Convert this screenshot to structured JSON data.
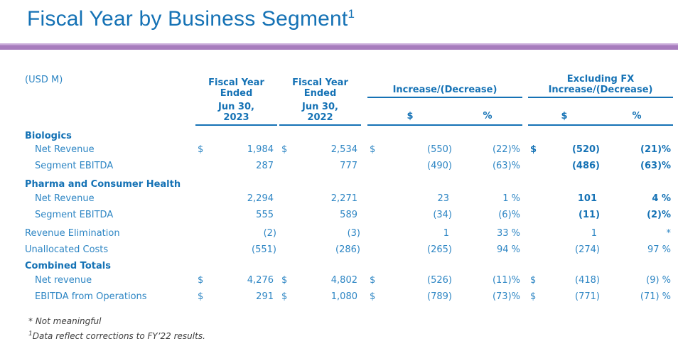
{
  "title": {
    "text": "Fiscal Year by Business Segment",
    "footnote_ref": "1"
  },
  "colors": {
    "title_blue": "#1572B5",
    "body_blue": "#2E86C4",
    "bar_purple": "#A77CBD",
    "bar_purple_light": "#C9ABD9",
    "footnote_gray": "#3E3E3E"
  },
  "table": {
    "unit_label": "(USD M)",
    "columns": {
      "fy2023": {
        "title_line1": "Fiscal Year",
        "title_line2": "Ended",
        "date_line1": "Jun 30,",
        "date_line2": "2023"
      },
      "fy2022": {
        "title_line1": "Fiscal Year",
        "title_line2": "Ended",
        "date_line1": "Jun 30,",
        "date_line2": "2022"
      },
      "increase": {
        "title": "Increase/(Decrease)",
        "sub_dollar": "$",
        "sub_percent": "%"
      },
      "excluding_fx": {
        "title_line1": "Excluding FX",
        "title_line2": "Increase/(Decrease)",
        "sub_dollar": "$",
        "sub_percent": "%"
      }
    },
    "rows": [
      {
        "kind": "section",
        "label": "Biologics",
        "spaced": true
      },
      {
        "kind": "data",
        "label": "Net Revenue",
        "indent": true,
        "fy2023_sign": "$",
        "fy2023": "1,984",
        "fy2022_sign": "$",
        "fy2022": "2,534",
        "inc_usd_sign": "$",
        "inc_usd": "(550)",
        "inc_pct": "(22)%",
        "fx_usd_sign": "$",
        "fx_usd": "(520)",
        "fx_pct": "(21)%",
        "fx_bold": true
      },
      {
        "kind": "data",
        "label": "Segment EBITDA",
        "indent": true,
        "fy2023": "287",
        "fy2022": "777",
        "inc_usd": "(490)",
        "inc_pct": "(63)%",
        "fx_usd": "(486)",
        "fx_pct": "(63)%",
        "fx_bold": true
      },
      {
        "kind": "section",
        "label": "Pharma and Consumer Health",
        "spaced": true
      },
      {
        "kind": "data",
        "label": "Net Revenue",
        "indent": true,
        "fy2023": "2,294",
        "fy2022": "2,271",
        "inc_usd": "23",
        "inc_pct": "1 %",
        "fx_usd": "101",
        "fx_pct": "4 %",
        "fx_bold": true
      },
      {
        "kind": "data",
        "label": "Segment EBITDA",
        "indent": true,
        "fy2023": "555",
        "fy2022": "589",
        "inc_usd": "(34)",
        "inc_pct": "(6)%",
        "fx_usd": "(11)",
        "fx_pct": "(2)%",
        "fx_bold": true
      },
      {
        "kind": "data",
        "label": "Revenue Elimination",
        "indent": false,
        "spaced": true,
        "fy2023": "(2)",
        "fy2022": "(3)",
        "inc_usd": "1",
        "inc_pct": "33 %",
        "fx_usd": "1",
        "fx_pct": "*",
        "fx_bold": false
      },
      {
        "kind": "data",
        "label": "Unallocated Costs",
        "indent": false,
        "spaced": true,
        "fy2023": "(551)",
        "fy2022": "(286)",
        "inc_usd": "(265)",
        "inc_pct": "94 %",
        "fx_usd": "(274)",
        "fx_pct": "97 %",
        "fx_bold": false
      },
      {
        "kind": "section",
        "label": "Combined Totals",
        "spaced": true
      },
      {
        "kind": "data",
        "label": "Net revenue",
        "indent": true,
        "fy2023_sign": "$",
        "fy2023": "4,276",
        "fy2022_sign": "$",
        "fy2022": "4,802",
        "inc_usd_sign": "$",
        "inc_usd": "(526)",
        "inc_pct": "(11)%",
        "fx_usd_sign": "$",
        "fx_usd": "(418)",
        "fx_pct": "(9) %",
        "fx_bold": false
      },
      {
        "kind": "data",
        "label": "EBITDA from Operations",
        "indent": true,
        "fy2023_sign": "$",
        "fy2023": "291",
        "fy2022_sign": "$",
        "fy2022": "1,080",
        "inc_usd_sign": "$",
        "inc_usd": "(789)",
        "inc_pct": "(73)%",
        "fx_usd_sign": "$",
        "fx_usd": "(771)",
        "fx_pct": "(71) %",
        "fx_bold": false
      }
    ]
  },
  "footnotes": [
    {
      "marker": "*",
      "text": "Not meaningful"
    },
    {
      "marker": "1",
      "text": "Data reflect corrections to FY’22 results."
    }
  ]
}
